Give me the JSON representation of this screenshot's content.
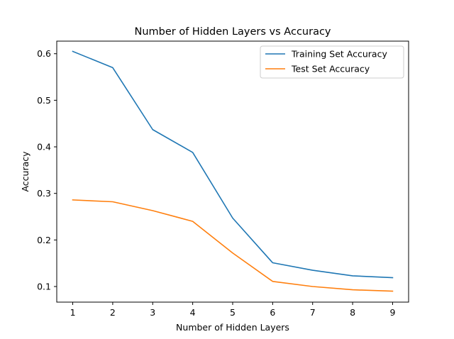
{
  "chart_data": {
    "type": "line",
    "title": "Number of Hidden Layers vs Accuracy",
    "xlabel": "Number of Hidden Layers",
    "ylabel": "Accuracy",
    "x": [
      1,
      2,
      3,
      4,
      5,
      6,
      7,
      8,
      9
    ],
    "xlim": [
      0.6,
      9.4
    ],
    "ylim": [
      0.0665,
      0.627
    ],
    "xticks": [
      1,
      2,
      3,
      4,
      5,
      6,
      7,
      8,
      9
    ],
    "yticks": [
      0.1,
      0.2,
      0.3,
      0.4,
      0.5,
      0.6
    ],
    "ytick_labels": [
      "0.1",
      "0.2",
      "0.3",
      "0.4",
      "0.5",
      "0.6"
    ],
    "grid": false,
    "legend_position": "top-right",
    "series": [
      {
        "name": "Training Set Accuracy",
        "color": "#1f77b4",
        "values": [
          0.605,
          0.57,
          0.437,
          0.388,
          0.247,
          0.151,
          0.135,
          0.123,
          0.119
        ]
      },
      {
        "name": "Test Set Accuracy",
        "color": "#ff7f0e",
        "values": [
          0.286,
          0.282,
          0.263,
          0.24,
          0.172,
          0.111,
          0.1,
          0.093,
          0.09
        ]
      }
    ]
  }
}
